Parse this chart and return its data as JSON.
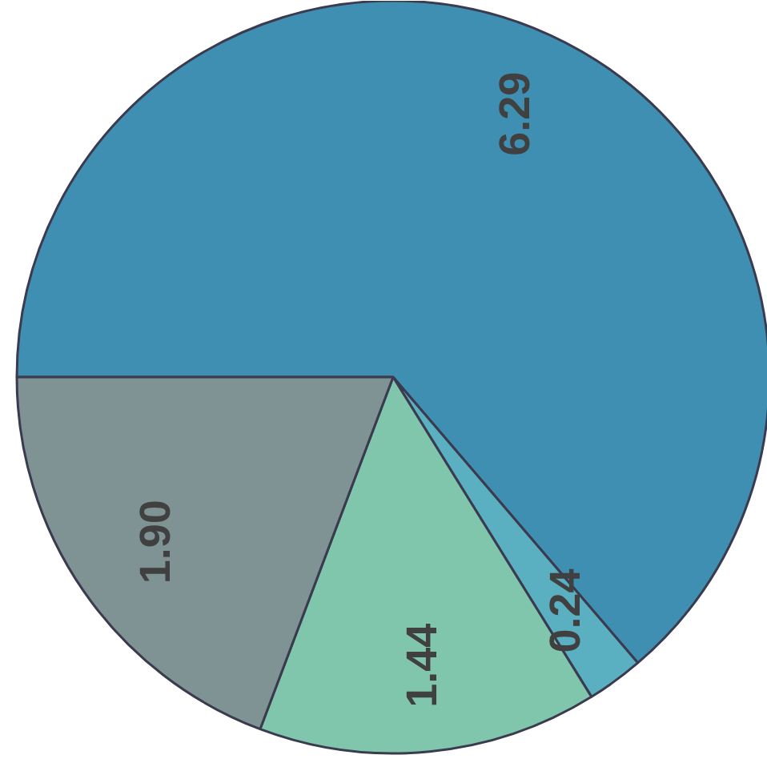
{
  "chart_data": {
    "type": "pie",
    "categories": [
      null,
      null,
      null,
      null
    ],
    "values": [
      6.29,
      0.24,
      1.44,
      1.9
    ],
    "colors": [
      "#3f8fb3",
      "#5ab0c0",
      "#7fc6ad",
      "#7f9294"
    ],
    "value_labels": [
      "6.29",
      "0.24",
      "1.44",
      "1.90"
    ]
  }
}
